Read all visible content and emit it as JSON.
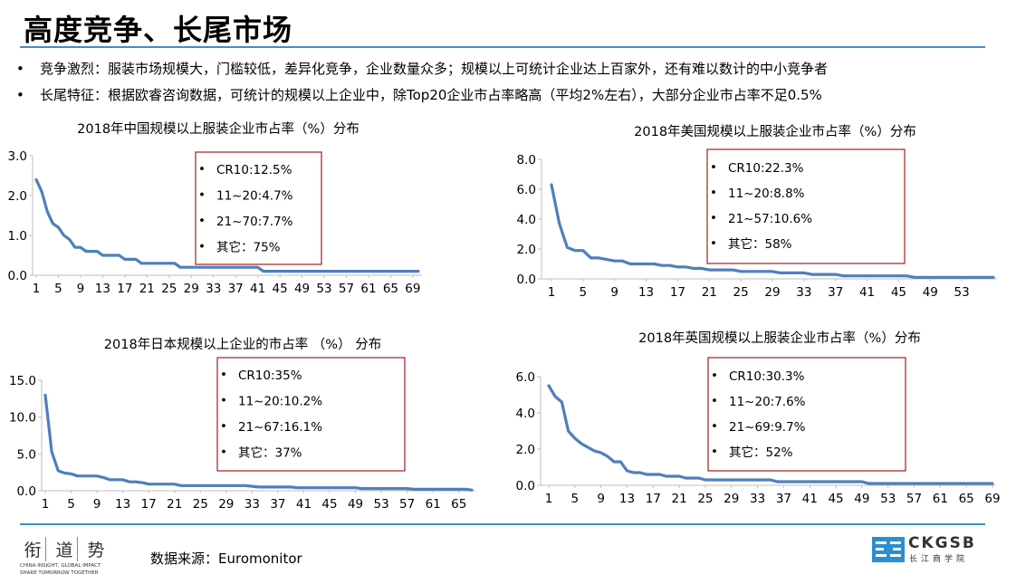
{
  "slide": {
    "title": "高度竞争、长尾市场",
    "bullets": [
      {
        "marker": "•",
        "text": "竞争激烈：服装市场规模大，门槛较低，差异化竞争，企业数量众多；规模以上可统计企业达上百家外，还有难以数计的中小竞争者"
      },
      {
        "marker": "•",
        "text": "长尾特征：根据欧睿咨询数据，可统计的规模以上企业中，除Top20企业市占率略高（平均2%左右），大部分企业市占率不足0.5%"
      }
    ],
    "source": "数据来源：Euromonitor",
    "logo_left": {
      "glyphs": [
        "衔",
        "道",
        "势"
      ],
      "tagline": "CHINA INSIGHT, GLOBAL IMPACT",
      "tagline2": "SHARE TOMORROW TOGETHER"
    },
    "logo_right": {
      "name": "CKGSB",
      "sub": "长江商学院"
    }
  },
  "colors": {
    "line": "#4e7fbb",
    "accent_rule": "#3d8fcc",
    "legend_border": "#a21f1f"
  },
  "chart_data": [
    {
      "type": "line",
      "title": "2018年中国规模以上服装企业市占率（%）分布",
      "ylim": [
        0,
        3
      ],
      "yticks": [
        "3.0",
        "2.0",
        "1.0",
        "0.0"
      ],
      "yticks_values": [
        3,
        2,
        1,
        0
      ],
      "xticks": [
        "1",
        "5",
        "9",
        "13",
        "17",
        "21",
        "25",
        "29",
        "33",
        "37",
        "41",
        "45",
        "49",
        "53",
        "57",
        "61",
        "65",
        "69"
      ],
      "n": 70,
      "anchors": [
        [
          1,
          2.4
        ],
        [
          2,
          2.1
        ],
        [
          3,
          1.6
        ],
        [
          4,
          1.3
        ],
        [
          5,
          1.2
        ],
        [
          6,
          1.0
        ],
        [
          7,
          0.9
        ],
        [
          8,
          0.7
        ],
        [
          9,
          0.7
        ],
        [
          10,
          0.6
        ],
        [
          12,
          0.6
        ],
        [
          13,
          0.5
        ],
        [
          16,
          0.5
        ],
        [
          17,
          0.4
        ],
        [
          19,
          0.4
        ],
        [
          20,
          0.3
        ],
        [
          26,
          0.3
        ],
        [
          27,
          0.2
        ],
        [
          41,
          0.2
        ],
        [
          42,
          0.1
        ],
        [
          70,
          0.1
        ]
      ],
      "legend": [
        "CR10:12.5%",
        "11~20:4.7%",
        "21~70:7.7%",
        "其它：75%"
      ],
      "legend_marker": "•"
    },
    {
      "type": "line",
      "title": "2018年美国规模以上服装企业市占率（%）分布",
      "ylim": [
        0,
        8
      ],
      "yticks": [
        "8.0",
        "6.0",
        "4.0",
        "2.0",
        "0.0"
      ],
      "yticks_values": [
        8,
        6,
        4,
        2,
        0
      ],
      "xticks": [
        "1",
        "5",
        "9",
        "13",
        "17",
        "21",
        "25",
        "29",
        "33",
        "37",
        "41",
        "45",
        "49",
        "53"
      ],
      "n": 57,
      "anchors": [
        [
          1,
          6.3
        ],
        [
          2,
          3.7
        ],
        [
          3,
          2.1
        ],
        [
          4,
          1.9
        ],
        [
          5,
          1.9
        ],
        [
          6,
          1.4
        ],
        [
          7,
          1.4
        ],
        [
          8,
          1.3
        ],
        [
          9,
          1.2
        ],
        [
          10,
          1.2
        ],
        [
          11,
          1.0
        ],
        [
          14,
          1.0
        ],
        [
          15,
          0.9
        ],
        [
          16,
          0.9
        ],
        [
          17,
          0.8
        ],
        [
          18,
          0.8
        ],
        [
          19,
          0.7
        ],
        [
          20,
          0.7
        ],
        [
          21,
          0.6
        ],
        [
          24,
          0.6
        ],
        [
          25,
          0.5
        ],
        [
          29,
          0.5
        ],
        [
          30,
          0.4
        ],
        [
          33,
          0.4
        ],
        [
          34,
          0.3
        ],
        [
          37,
          0.3
        ],
        [
          38,
          0.2
        ],
        [
          46,
          0.2
        ],
        [
          47,
          0.1
        ],
        [
          57,
          0.1
        ]
      ],
      "legend": [
        "CR10:22.3%",
        "11~20:8.8%",
        "21~57:10.6%",
        "其它：58%"
      ],
      "legend_marker": "•"
    },
    {
      "type": "line",
      "title": "2018年日本规模以上企业的市占率 （%） 分布",
      "ylim": [
        0,
        15
      ],
      "yticks": [
        "15.0",
        "10.0",
        "5.0",
        "0.0"
      ],
      "yticks_values": [
        15,
        10,
        5,
        0
      ],
      "xticks": [
        "1",
        "5",
        "9",
        "13",
        "17",
        "21",
        "25",
        "29",
        "33",
        "37",
        "41",
        "45",
        "49",
        "53",
        "57",
        "61",
        "65"
      ],
      "n": 67,
      "anchors": [
        [
          1,
          13
        ],
        [
          2,
          5.3
        ],
        [
          3,
          2.7
        ],
        [
          4,
          2.4
        ],
        [
          5,
          2.3
        ],
        [
          6,
          2.0
        ],
        [
          9,
          2.0
        ],
        [
          10,
          1.8
        ],
        [
          11,
          1.5
        ],
        [
          13,
          1.5
        ],
        [
          14,
          1.2
        ],
        [
          16,
          1.1
        ],
        [
          17,
          0.9
        ],
        [
          21,
          0.9
        ],
        [
          22,
          0.7
        ],
        [
          33,
          0.6
        ],
        [
          34,
          0.5
        ],
        [
          40,
          0.4
        ],
        [
          50,
          0.3
        ],
        [
          58,
          0.2
        ],
        [
          67,
          0.1
        ]
      ],
      "legend": [
        "CR10:35%",
        "11~20:10.2%",
        "21~67:16.1%",
        "其它：37%"
      ],
      "legend_marker": "•"
    },
    {
      "type": "line",
      "title": "2018年英国规模以上服装企业市占率（%）分布",
      "ylim": [
        0,
        6
      ],
      "yticks": [
        "6.0",
        "4.0",
        "2.0",
        "0.0"
      ],
      "yticks_values": [
        6,
        4,
        2,
        0
      ],
      "xticks": [
        "1",
        "5",
        "9",
        "13",
        "17",
        "21",
        "25",
        "29",
        "33",
        "37",
        "41",
        "45",
        "49",
        "53",
        "57",
        "61",
        "65",
        "69"
      ],
      "n": 69,
      "anchors": [
        [
          1,
          5.5
        ],
        [
          2,
          4.9
        ],
        [
          3,
          4.6
        ],
        [
          4,
          3.0
        ],
        [
          5,
          2.6
        ],
        [
          6,
          2.3
        ],
        [
          7,
          2.1
        ],
        [
          8,
          1.9
        ],
        [
          9,
          1.8
        ],
        [
          10,
          1.6
        ],
        [
          11,
          1.3
        ],
        [
          12,
          1.3
        ],
        [
          13,
          0.8
        ],
        [
          14,
          0.7
        ],
        [
          15,
          0.7
        ],
        [
          16,
          0.6
        ],
        [
          18,
          0.6
        ],
        [
          19,
          0.5
        ],
        [
          21,
          0.5
        ],
        [
          22,
          0.4
        ],
        [
          24,
          0.4
        ],
        [
          25,
          0.3
        ],
        [
          35,
          0.3
        ],
        [
          36,
          0.2
        ],
        [
          49,
          0.2
        ],
        [
          50,
          0.1
        ],
        [
          69,
          0.1
        ]
      ],
      "legend": [
        "CR10:30.3%",
        "11~20:7.6%",
        "21~69:9.7%",
        "其它：52%"
      ],
      "legend_marker": "•"
    }
  ]
}
